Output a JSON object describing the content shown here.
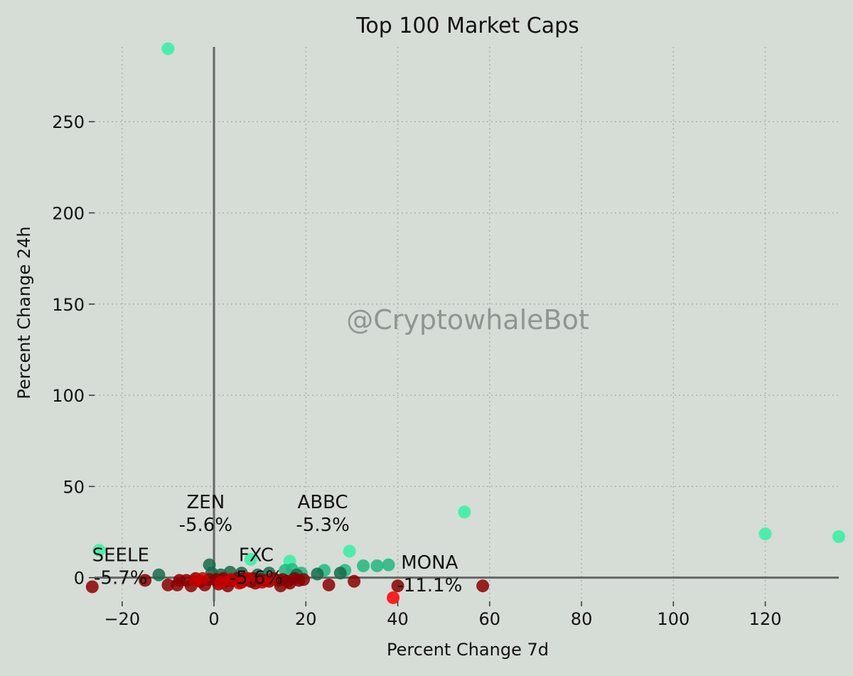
{
  "chart_data": {
    "type": "scatter",
    "title": "Top 100 Market Caps",
    "xlabel": "Percent Change 7d",
    "ylabel": "Percent Change 24h",
    "watermark": "@CryptowhaleBot",
    "xlim": [
      -26,
      136
    ],
    "ylim": [
      -13,
      291
    ],
    "xticks": [
      -20,
      0,
      20,
      40,
      60,
      80,
      100,
      120
    ],
    "yticks": [
      0,
      50,
      100,
      150,
      200,
      250
    ],
    "xtick_labels": [
      "−20",
      "0",
      "20",
      "40",
      "60",
      "80",
      "100",
      "120"
    ],
    "ytick_labels": [
      "0",
      "50",
      "100",
      "150",
      "200",
      "250"
    ],
    "grid": true,
    "colors": {
      "background": "#d6dcd6",
      "bright_green": "#33f0a6",
      "mid_green": "#1fb87f",
      "dark_green": "#156b4a",
      "dark_red": "#8b0000",
      "red": "#c80000",
      "bright_red": "#ff0000",
      "axis_line": "#666666"
    },
    "series": [
      {
        "color": "#33f0a6",
        "points": [
          [
            -10,
            290
          ],
          [
            -25,
            15
          ],
          [
            54.5,
            36
          ],
          [
            120,
            24
          ],
          [
            136,
            22.5
          ],
          [
            29.5,
            14.5
          ],
          [
            8,
            10
          ],
          [
            16.5,
            9
          ]
        ]
      },
      {
        "color": "#1fb87f",
        "points": [
          [
            38,
            7
          ],
          [
            35.5,
            6.5
          ],
          [
            32.5,
            6.5
          ],
          [
            28.5,
            4
          ],
          [
            24,
            4
          ],
          [
            17,
            4.5
          ],
          [
            19,
            2.5
          ],
          [
            15.5,
            4
          ]
        ]
      },
      {
        "color": "#156b4a",
        "points": [
          [
            -12,
            1.5
          ],
          [
            -1,
            7
          ],
          [
            3.5,
            3
          ],
          [
            6,
            2.5
          ],
          [
            22.5,
            2
          ],
          [
            27.5,
            2.5
          ],
          [
            12,
            2.5
          ],
          [
            9.5,
            1.5
          ],
          [
            18,
            1.5
          ],
          [
            -0.5,
            2.5
          ],
          [
            1.5,
            1.5
          ]
        ]
      },
      {
        "color": "#8b0000",
        "points": [
          [
            -26.5,
            -5
          ],
          [
            -15,
            -1.5
          ],
          [
            -10,
            -4
          ],
          [
            -8,
            -4
          ],
          [
            -7.5,
            -1.5
          ],
          [
            -6,
            -1.5
          ],
          [
            -5,
            -4.5
          ],
          [
            -4,
            -0.5
          ],
          [
            -3,
            -2
          ],
          [
            -2,
            -4
          ],
          [
            -1,
            -1
          ],
          [
            0.5,
            -1
          ],
          [
            1,
            -3.5
          ],
          [
            2,
            -0.5
          ],
          [
            2.5,
            -2
          ],
          [
            3,
            -4.5
          ],
          [
            4,
            -1.5
          ],
          [
            5,
            -0.5
          ],
          [
            6,
            -2.5
          ],
          [
            6.5,
            -0.5
          ],
          [
            7,
            -1
          ],
          [
            8,
            -2
          ],
          [
            8.5,
            -0.5
          ],
          [
            9,
            -3
          ],
          [
            10,
            -1
          ],
          [
            11,
            -1.5
          ],
          [
            12,
            -2
          ],
          [
            13,
            -0.5
          ],
          [
            14,
            -1.5
          ],
          [
            14.5,
            -4.5
          ],
          [
            15,
            -1
          ],
          [
            16,
            -2
          ],
          [
            16.5,
            -3
          ],
          [
            17.5,
            -0.5
          ],
          [
            18.5,
            -1.5
          ],
          [
            19.5,
            -1
          ],
          [
            25,
            -4
          ],
          [
            30.5,
            -2
          ],
          [
            58.5,
            -4.5
          ],
          [
            40,
            -4.5
          ]
        ]
      },
      {
        "color": "#c80000",
        "points": [
          [
            -4,
            -1.5
          ],
          [
            -2.5,
            -0.5
          ],
          [
            1.5,
            -2.5
          ],
          [
            3.5,
            -1
          ],
          [
            5.5,
            -3
          ],
          [
            7.5,
            -0.5
          ],
          [
            10.5,
            -2.5
          ],
          [
            12.5,
            -1
          ]
        ]
      },
      {
        "color": "#ff0000",
        "points": [
          [
            39,
            -11
          ]
        ]
      }
    ],
    "annotations": [
      {
        "label": "ZEN",
        "value": "-5.6%",
        "x": -8,
        "y": 38
      },
      {
        "label": "ABBC",
        "value": "-5.3%",
        "x": 17.5,
        "y": 38
      },
      {
        "label": "SEELE",
        "value": "-5.7%",
        "x": -26.5,
        "y": 9
      },
      {
        "label": "FXC",
        "value": "-5.6%",
        "x": 3,
        "y": 9
      },
      {
        "label": "MONA",
        "value": "-11.1%",
        "x": 39.5,
        "y": 5
      }
    ]
  }
}
